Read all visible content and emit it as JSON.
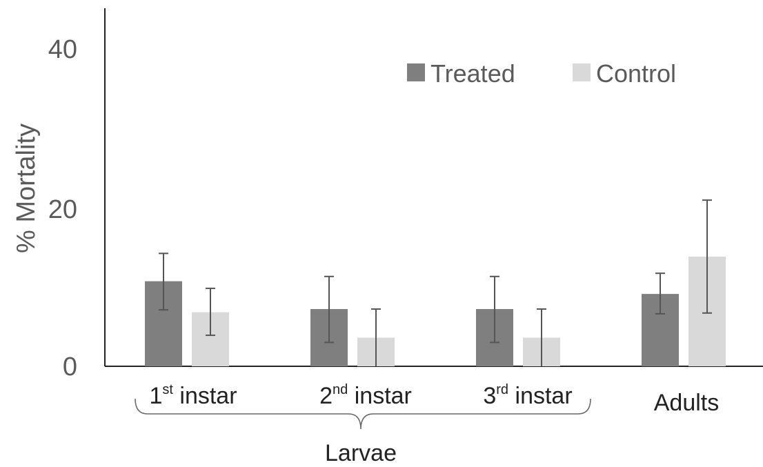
{
  "chart_data": {
    "type": "bar",
    "title": "",
    "xlabel": "",
    "ylabel": "% Mortality",
    "ylim": [
      0,
      40
    ],
    "yticks": [
      "0",
      "20",
      "40"
    ],
    "grid": false,
    "legend_position": "top-right",
    "categories": [
      {
        "base": "1",
        "sup": "st",
        "rest": " instar"
      },
      {
        "base": "2",
        "sup": "nd",
        "rest": " instar"
      },
      {
        "base": "3",
        "sup": "rd",
        "rest": " instar"
      },
      {
        "base": "Adults",
        "sup": "",
        "rest": ""
      }
    ],
    "group_bracket": {
      "label": "Larvae",
      "spans_categories": [
        0,
        1,
        2
      ]
    },
    "series": [
      {
        "name": "Treated",
        "color": "#7f7f7f",
        "values": [
          10.7,
          7.2,
          7.2,
          9.1
        ],
        "error_low": [
          7.1,
          3.0,
          3.0,
          6.6
        ],
        "error_high": [
          14.2,
          11.3,
          11.3,
          11.7
        ]
      },
      {
        "name": "Control",
        "color": "#d9d9d9",
        "values": [
          6.8,
          3.6,
          3.6,
          13.8
        ],
        "error_low": [
          3.9,
          0,
          0,
          6.7
        ],
        "error_high": [
          9.8,
          7.2,
          7.2,
          20.9
        ]
      }
    ]
  }
}
